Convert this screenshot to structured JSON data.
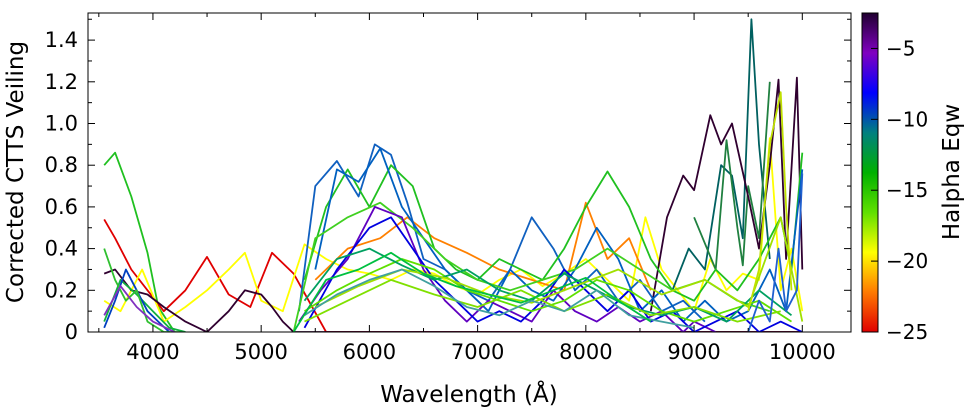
{
  "chart_data": {
    "type": "line",
    "xlabel": "Wavelength (Å)",
    "ylabel": "Corrected CTTS Veiling",
    "xlim": [
      3400,
      10450
    ],
    "ylim": [
      0,
      1.53
    ],
    "xticks": [
      4000,
      5000,
      6000,
      7000,
      8000,
      9000,
      10000
    ],
    "xtick_labels": [
      "4000",
      "5000",
      "6000",
      "7000",
      "8000",
      "9000",
      "10000"
    ],
    "yticks": [
      0,
      0.2,
      0.4,
      0.6,
      0.8,
      1.0,
      1.2,
      1.4
    ],
    "ytick_labels": [
      "0",
      "0.2",
      "0.4",
      "0.6",
      "0.8",
      "1.0",
      "1.2",
      "1.4"
    ],
    "grid": false,
    "colorbar": {
      "label": "Halpha Eqw",
      "range": [
        -25,
        -2.5
      ],
      "ticks": [
        -25,
        -20,
        -15,
        -10,
        -5
      ],
      "tick_labels": [
        "−25",
        "−20",
        "−15",
        "−10",
        "−5"
      ],
      "colors": [
        "#e00000",
        "#ff7a00",
        "#ffff00",
        "#60e000",
        "#00b000",
        "#008080",
        "#0000ff",
        "#8000c0",
        "#200030"
      ]
    },
    "series": [
      {
        "color": "#20c020",
        "eqw": -12,
        "x": [
          3550,
          3650,
          3800,
          3950,
          4050,
          4200
        ],
        "y": [
          0.8,
          0.86,
          0.65,
          0.38,
          0.12,
          0.0
        ]
      },
      {
        "color": "#e00000",
        "eqw": -25,
        "x": [
          3550,
          3650,
          3800,
          3950,
          4100,
          4300,
          4500,
          4700,
          4900,
          5100,
          5300,
          5600,
          6000,
          6400,
          6800,
          7200,
          7600,
          8000,
          8400,
          9000,
          10000
        ],
        "y": [
          0.54,
          0.45,
          0.3,
          0.2,
          0.1,
          0.2,
          0.36,
          0.18,
          0.12,
          0.38,
          0.28,
          0.0,
          0.0,
          0.0,
          0.0,
          0.0,
          0.0,
          0.0,
          0.0,
          0.0,
          0.0
        ]
      },
      {
        "color": "#ffff00",
        "eqw": -17.5,
        "x": [
          3550,
          3700,
          3900,
          4100,
          4300,
          4500,
          4700,
          4850,
          5000,
          5200,
          5400,
          5600,
          5800,
          6000,
          6200,
          6400,
          6600,
          6800,
          7000,
          7200,
          7400,
          7600,
          7800,
          8000,
          8200,
          8400,
          8550,
          8700,
          8850,
          9000,
          9150,
          9300,
          9450,
          9600,
          9700,
          9800,
          9900,
          10000
        ],
        "y": [
          0.15,
          0.1,
          0.3,
          0.05,
          0.12,
          0.2,
          0.3,
          0.38,
          0.15,
          0.1,
          0.42,
          0.35,
          0.3,
          0.28,
          0.25,
          0.3,
          0.28,
          0.22,
          0.18,
          0.25,
          0.3,
          0.22,
          0.28,
          0.35,
          0.25,
          0.15,
          0.55,
          0.3,
          0.2,
          0.1,
          0.35,
          0.2,
          0.28,
          0.25,
          0.93,
          0.2,
          0.4,
          0.1
        ]
      },
      {
        "color": "#ff8000",
        "eqw": -21,
        "x": [
          5500,
          5800,
          6100,
          6350,
          6600,
          6900,
          7200,
          7500,
          7800,
          8000,
          8200,
          8400,
          8600
        ],
        "y": [
          0.25,
          0.4,
          0.45,
          0.55,
          0.45,
          0.38,
          0.3,
          0.25,
          0.2,
          0.62,
          0.35,
          0.45,
          0.2
        ]
      },
      {
        "color": "#006060",
        "eqw": -9,
        "x": [
          8800,
          8950,
          9100,
          9250,
          9350,
          9450,
          9530,
          9600,
          9700
        ],
        "y": [
          0.2,
          0.4,
          0.3,
          0.8,
          0.75,
          0.45,
          1.5,
          0.9,
          0.35
        ]
      },
      {
        "color": "#208040",
        "eqw": -10,
        "x": [
          9000,
          9200,
          9300,
          9400,
          9450,
          9500,
          9600,
          9700
        ],
        "y": [
          0.55,
          0.3,
          0.92,
          0.5,
          0.32,
          0.7,
          0.45,
          1.2
        ]
      },
      {
        "color": "#300030",
        "eqw": -3,
        "x": [
          8600,
          8750,
          8900,
          9000,
          9150,
          9250,
          9350,
          9500,
          9600,
          9700,
          9780,
          9850,
          9950,
          10000
        ],
        "y": [
          0.1,
          0.55,
          0.75,
          0.68,
          1.04,
          0.9,
          1.0,
          0.65,
          0.4,
          0.8,
          1.21,
          0.35,
          1.22,
          0.3
        ]
      },
      {
        "color": "#300030",
        "eqw": -3,
        "x": [
          3550,
          3650,
          3800,
          3950,
          4100,
          4300,
          4500,
          4700,
          4850,
          5000,
          5100,
          5200,
          5300,
          5500,
          6000,
          7000,
          8000,
          9000,
          10000
        ],
        "y": [
          0.28,
          0.3,
          0.2,
          0.18,
          0.12,
          0.05,
          0.0,
          0.1,
          0.2,
          0.18,
          0.12,
          0.05,
          0.0,
          0.0,
          0.0,
          0.0,
          0.0,
          0.0,
          0.0
        ]
      },
      {
        "color": "#1060c0",
        "eqw": -6.5,
        "x": [
          5350,
          5500,
          5700,
          5900,
          6050,
          6200,
          6350,
          6500,
          6700,
          6900,
          7100,
          7300,
          7500,
          7700,
          7900,
          8100,
          8300,
          8500,
          8700,
          8900,
          9100
        ],
        "y": [
          0.1,
          0.7,
          0.82,
          0.65,
          0.9,
          0.85,
          0.62,
          0.35,
          0.3,
          0.2,
          0.15,
          0.3,
          0.55,
          0.4,
          0.2,
          0.3,
          0.15,
          0.25,
          0.1,
          0.15,
          0.05
        ]
      },
      {
        "color": "#20c020",
        "eqw": -12.5,
        "x": [
          5400,
          5600,
          5800,
          6000,
          6200,
          6400,
          6600,
          6800,
          7000,
          7200,
          7400,
          7600,
          7800,
          8000,
          8200,
          8400,
          8600,
          8800,
          9000,
          9200,
          9400,
          9600,
          9800,
          9900,
          10000
        ],
        "y": [
          0.25,
          0.6,
          0.78,
          0.6,
          0.8,
          0.7,
          0.4,
          0.3,
          0.25,
          0.35,
          0.3,
          0.25,
          0.4,
          0.6,
          0.77,
          0.6,
          0.35,
          0.2,
          0.15,
          0.3,
          0.2,
          0.35,
          0.55,
          0.3,
          0.86
        ]
      },
      {
        "color": "#0060c0",
        "eqw": -7,
        "x": [
          5500,
          5700,
          5900,
          6100,
          6300,
          6500,
          6700,
          6900,
          7100,
          7300,
          7500,
          7700,
          7900,
          8100,
          8300,
          8500,
          8700,
          8900,
          9100,
          9300,
          9500,
          9700,
          9850,
          10000
        ],
        "y": [
          0.3,
          0.78,
          0.72,
          0.88,
          0.6,
          0.45,
          0.3,
          0.2,
          0.1,
          0.3,
          0.2,
          0.15,
          0.3,
          0.5,
          0.35,
          0.1,
          0.2,
          0.05,
          0.15,
          0.05,
          0.1,
          0.3,
          0.1,
          0.78
        ]
      },
      {
        "color": "#40d020",
        "eqw": -13.5,
        "x": [
          5300,
          5500,
          5800,
          6100,
          6400,
          6700,
          7000,
          7300,
          7600,
          7900,
          8200,
          8500,
          8800,
          9100,
          9400,
          9700
        ],
        "y": [
          0.0,
          0.45,
          0.55,
          0.62,
          0.5,
          0.35,
          0.25,
          0.2,
          0.25,
          0.3,
          0.4,
          0.3,
          0.2,
          0.25,
          0.15,
          0.1
        ]
      },
      {
        "color": "#6000c0",
        "eqw": -4.5,
        "x": [
          5350,
          5550,
          5800,
          6050,
          6300,
          6500,
          6700,
          6900,
          7100,
          7300,
          7500,
          7700,
          7900,
          8100,
          8300,
          8500,
          8700,
          8900,
          9000,
          9200
        ],
        "y": [
          0.05,
          0.2,
          0.35,
          0.6,
          0.55,
          0.3,
          0.15,
          0.05,
          0.15,
          0.1,
          0.05,
          0.2,
          0.1,
          0.05,
          0.12,
          0.05,
          0.1,
          0.0,
          0.05,
          0.0
        ]
      },
      {
        "color": "#0000e0",
        "eqw": -5.5,
        "x": [
          5400,
          5700,
          6000,
          6200,
          6400,
          6600,
          6800,
          7000,
          7200,
          7400,
          7600,
          7800,
          8000,
          8200,
          8400,
          8600,
          8800,
          9000,
          9200,
          9400,
          9600,
          9800,
          10000
        ],
        "y": [
          0.02,
          0.3,
          0.5,
          0.55,
          0.4,
          0.25,
          0.15,
          0.05,
          0.1,
          0.05,
          0.15,
          0.3,
          0.2,
          0.1,
          0.2,
          0.05,
          0.1,
          0.0,
          0.05,
          0.1,
          0.0,
          0.05,
          0.0
        ]
      },
      {
        "color": "#10b040",
        "eqw": -11,
        "x": [
          3550,
          3700,
          3850,
          4000,
          4150,
          4300
        ],
        "y": [
          0.05,
          0.25,
          0.18,
          0.1,
          0.02,
          0.0
        ]
      },
      {
        "color": "#0040c0",
        "eqw": -6,
        "x": [
          3550,
          3650,
          3750,
          3850,
          3950,
          4050,
          4150
        ],
        "y": [
          0.02,
          0.15,
          0.3,
          0.2,
          0.1,
          0.05,
          0.0
        ]
      },
      {
        "color": "#30c030",
        "eqw": -12,
        "x": [
          3550,
          3650,
          3750,
          3850,
          3950,
          4100,
          4250
        ],
        "y": [
          0.4,
          0.25,
          0.15,
          0.2,
          0.05,
          0.0,
          0.0
        ]
      },
      {
        "color": "#8030c0",
        "eqw": -4,
        "x": [
          3550,
          3700,
          3850,
          4000,
          4200
        ],
        "y": [
          0.08,
          0.22,
          0.12,
          0.05,
          0.0
        ]
      },
      {
        "color": "#60e000",
        "eqw": -14,
        "x": [
          5400,
          5700,
          6000,
          6300,
          6600,
          6900,
          7200,
          7500,
          7800,
          8100,
          8400,
          8700,
          9000,
          9300,
          9600,
          9900
        ],
        "y": [
          0.1,
          0.2,
          0.28,
          0.35,
          0.3,
          0.2,
          0.15,
          0.1,
          0.15,
          0.25,
          0.2,
          0.1,
          0.05,
          0.1,
          0.15,
          0.05
        ]
      },
      {
        "color": "#00a060",
        "eqw": -9.5,
        "x": [
          5400,
          5700,
          6000,
          6300,
          6600,
          6900,
          7200,
          7500,
          7800,
          8100,
          8400,
          8700,
          9000,
          9300,
          9600,
          9900
        ],
        "y": [
          0.15,
          0.35,
          0.4,
          0.32,
          0.25,
          0.3,
          0.2,
          0.15,
          0.28,
          0.2,
          0.12,
          0.08,
          0.12,
          0.05,
          0.2,
          0.08
        ]
      },
      {
        "color": "#80e000",
        "eqw": -15,
        "x": [
          5400,
          5800,
          6200,
          6600,
          7000,
          7400,
          7800,
          8200,
          8600,
          9000,
          9400,
          9800
        ],
        "y": [
          0.05,
          0.15,
          0.25,
          0.18,
          0.12,
          0.2,
          0.1,
          0.18,
          0.08,
          0.12,
          0.05,
          0.1
        ]
      },
      {
        "color": "#a0e000",
        "eqw": -15.5,
        "x": [
          5500,
          5900,
          6300,
          6700,
          7100,
          7500,
          7900,
          8300,
          8700,
          9100,
          9500,
          9800,
          10000
        ],
        "y": [
          0.12,
          0.22,
          0.3,
          0.26,
          0.18,
          0.14,
          0.22,
          0.3,
          0.18,
          0.25,
          0.12,
          0.55,
          0.05
        ]
      },
      {
        "color": "#40a0a0",
        "eqw": -8,
        "x": [
          5400,
          5700,
          6000,
          6300,
          6600,
          6900,
          7200,
          7500,
          7800,
          8100,
          8400,
          8700,
          9000
        ],
        "y": [
          0.08,
          0.18,
          0.25,
          0.3,
          0.22,
          0.12,
          0.08,
          0.15,
          0.1,
          0.2,
          0.08,
          0.05,
          0.02
        ]
      },
      {
        "color": "#00c040",
        "eqw": -11.5,
        "x": [
          5300,
          5600,
          5900,
          6200,
          6500,
          6800,
          7100,
          7400,
          7700,
          8000,
          8300,
          8600
        ],
        "y": [
          0.0,
          0.25,
          0.3,
          0.38,
          0.28,
          0.22,
          0.18,
          0.14,
          0.2,
          0.26,
          0.15,
          0.05
        ]
      },
      {
        "color": "#2060d0",
        "eqw": -6,
        "x": [
          9500,
          9600,
          9700,
          9780,
          9850,
          9950,
          10000
        ],
        "y": [
          0.0,
          0.15,
          0.05,
          0.4,
          0.1,
          0.2,
          0.76
        ]
      },
      {
        "color": "#c0e000",
        "eqw": -16.5,
        "x": [
          9500,
          9600,
          9700,
          9800,
          9850,
          9900
        ],
        "y": [
          0.1,
          0.3,
          0.9,
          1.15,
          0.6,
          0.2
        ]
      }
    ]
  }
}
